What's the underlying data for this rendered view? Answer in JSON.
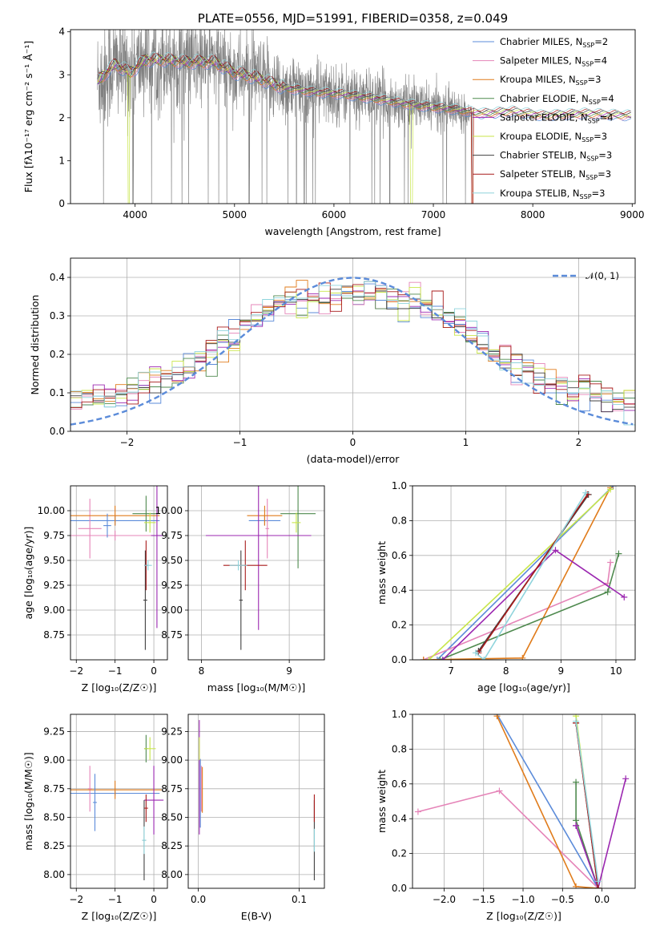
{
  "colors": {
    "Chabrier MILES": "#5b8bd9",
    "Salpeter MILES": "#e584b8",
    "Kroupa MILES": "#e07b1a",
    "Chabrier ELODIE": "#4f8a4f",
    "Salpeter ELODIE": "#9b27b0",
    "Kroupa ELODIE": "#c8e64a",
    "Chabrier STELIB": "#404040",
    "Salpeter STELIB": "#a81b1b",
    "Kroupa STELIB": "#8fd4dc",
    "data": "#808080",
    "normal": "#5b8bd9"
  },
  "chart_data": [
    {
      "id": "spectrum",
      "type": "line",
      "title": "PLATE=0556, MJD=51991, FIBERID=0358, z=0.049",
      "xlabel": "wavelength [Angstrom, rest frame]",
      "ylabel": "Flux [fλ10⁻¹⁷ erg cm⁻² s⁻¹ Å⁻¹]",
      "xlim": [
        3350,
        9030
      ],
      "ylim": [
        0,
        4.05
      ],
      "xticks": [
        4000,
        5000,
        6000,
        7000,
        8000,
        9000
      ],
      "yticks": [
        0,
        1,
        2,
        3,
        4
      ],
      "grid": false,
      "legend_position": "upper-right",
      "legend": [
        {
          "model": "Chabrier MILES",
          "label": "Chabrier MILES, N",
          "nssp": "2"
        },
        {
          "model": "Salpeter MILES",
          "label": "Salpeter MILES, N",
          "nssp": "4"
        },
        {
          "model": "Kroupa MILES",
          "label": "Kroupa MILES, N",
          "nssp": "3"
        },
        {
          "model": "Chabrier ELODIE",
          "label": "Chabrier ELODIE, N",
          "nssp": "4"
        },
        {
          "model": "Salpeter ELODIE",
          "label": "Salpeter ELODIE, N",
          "nssp": "4"
        },
        {
          "model": "Kroupa ELODIE",
          "label": "Kroupa ELODIE, N",
          "nssp": "3"
        },
        {
          "model": "Chabrier STELIB",
          "label": "Chabrier STELIB, N",
          "nssp": "3"
        },
        {
          "model": "Salpeter STELIB",
          "label": "Salpeter STELIB, N",
          "nssp": "3"
        },
        {
          "model": "Kroupa STELIB",
          "label": "Kroupa STELIB, N",
          "nssp": "3"
        }
      ],
      "legend_subscript": "SSP",
      "continuum_nodes": [
        [
          3620,
          2.85
        ],
        [
          3800,
          3.25
        ],
        [
          3950,
          3.05
        ],
        [
          4100,
          3.35
        ],
        [
          4300,
          3.35
        ],
        [
          4500,
          3.3
        ],
        [
          4800,
          3.3
        ],
        [
          5000,
          3.05
        ],
        [
          5200,
          2.95
        ],
        [
          5500,
          2.7
        ],
        [
          5800,
          2.6
        ],
        [
          6100,
          2.55
        ],
        [
          6400,
          2.45
        ],
        [
          6800,
          2.3
        ],
        [
          7200,
          2.2
        ],
        [
          7500,
          2.1
        ],
        [
          7800,
          2.15
        ],
        [
          8100,
          2.05
        ],
        [
          8500,
          2.1
        ],
        [
          8990,
          2.05
        ]
      ],
      "data_noise_amplitude": [
        [
          3620,
          1.2
        ],
        [
          4500,
          1.0
        ],
        [
          5500,
          0.75
        ],
        [
          6500,
          0.55
        ],
        [
          7300,
          0.4
        ],
        [
          7400,
          0.0
        ],
        [
          8990,
          0.0
        ]
      ],
      "data_range": [
        3620,
        7400
      ]
    },
    {
      "id": "residuals",
      "type": "histogram",
      "xlabel": "(data-model)/error",
      "ylabel": "Normed distribution",
      "xlim": [
        -2.5,
        2.5
      ],
      "ylim": [
        0,
        0.45
      ],
      "xticks": [
        -2,
        -1,
        0,
        1,
        2
      ],
      "yticks": [
        0.0,
        0.1,
        0.2,
        0.3,
        0.4
      ],
      "grid": true,
      "bin_width": 0.1,
      "legend_position": "upper-right",
      "reference": {
        "label": "𝒩(0, 1)",
        "mean": 0,
        "sigma": 1,
        "style": "dashed"
      }
    },
    {
      "id": "age_vs_Z",
      "type": "errorbar",
      "xlabel": "Z [log₁₀(Z/Z☉)]",
      "ylabel": "age  [log₁₀(age/yr)]",
      "xlim": [
        -2.15,
        0.35
      ],
      "ylim": [
        8.5,
        10.25
      ],
      "xticks": [
        -2,
        -1,
        0
      ],
      "yticks": [
        8.75,
        9.0,
        9.25,
        9.5,
        9.75,
        10.0
      ],
      "grid": true,
      "points": [
        {
          "model": "Chabrier MILES",
          "x": -1.0,
          "y": 9.9,
          "xerr": 1.15,
          "yerr": 0.05
        },
        {
          "model": "Salpeter MILES",
          "x": -1.65,
          "y": 9.82,
          "xerr": 0.3,
          "yerr": 0.3
        },
        {
          "model": "Kroupa MILES",
          "x": -1.0,
          "y": 9.95,
          "xerr": 1.15,
          "yerr": 0.1
        },
        {
          "model": "Salpeter MILES",
          "x": -1.0,
          "y": 9.75,
          "xerr": 1.2,
          "yerr": 0.05
        },
        {
          "model": "Chabrier ELODIE",
          "x": -0.2,
          "y": 9.97,
          "xerr": 0.35,
          "yerr": 0.18
        },
        {
          "model": "Salpeter ELODIE",
          "x": 0.08,
          "y": 9.75,
          "xerr": 0.15,
          "yerr": 0.93
        },
        {
          "model": "Kroupa ELODIE",
          "x": -0.1,
          "y": 9.88,
          "xerr": 0.15,
          "yerr": 0.1
        },
        {
          "model": "Chabrier STELIB",
          "x": -0.22,
          "y": 9.1,
          "xerr": 0.05,
          "yerr": 0.5
        },
        {
          "model": "Salpeter STELIB",
          "x": -0.2,
          "y": 9.45,
          "xerr": 0.05,
          "yerr": 0.25
        },
        {
          "model": "Kroupa STELIB",
          "x": -0.15,
          "y": 9.45,
          "xerr": 0.1,
          "yerr": 0.05
        },
        {
          "model": "Chabrier MILES",
          "x": -1.2,
          "y": 9.85,
          "xerr": 0.1,
          "yerr": 0.12
        }
      ]
    },
    {
      "id": "age_vs_mass",
      "type": "errorbar",
      "xlabel": "mass [log₁₀(M/M☉)]",
      "ylabel": "",
      "xlim": [
        7.85,
        9.4
      ],
      "ylim": [
        8.5,
        10.25
      ],
      "xticks": [
        8,
        9
      ],
      "yticks": [
        8.75,
        9.0,
        9.25,
        9.5,
        9.75,
        10.0
      ],
      "grid": true,
      "points": [
        {
          "model": "Chabrier MILES",
          "x": 8.72,
          "y": 9.9,
          "xerr": 0.18,
          "yerr": 0.05
        },
        {
          "model": "Salpeter MILES",
          "x": 8.75,
          "y": 9.82,
          "xerr": 0.02,
          "yerr": 0.3
        },
        {
          "model": "Kroupa MILES",
          "x": 8.72,
          "y": 9.95,
          "xerr": 0.2,
          "yerr": 0.1
        },
        {
          "model": "Chabrier ELODIE",
          "x": 9.1,
          "y": 9.97,
          "xerr": 0.2,
          "yerr": 0.55
        },
        {
          "model": "Salpeter ELODIE",
          "x": 8.65,
          "y": 9.75,
          "xerr": 0.6,
          "yerr": 0.95
        },
        {
          "model": "Kroupa ELODIE",
          "x": 9.08,
          "y": 9.88,
          "xerr": 0.05,
          "yerr": 0.1
        },
        {
          "model": "Chabrier STELIB",
          "x": 8.45,
          "y": 9.1,
          "xerr": 0.02,
          "yerr": 0.5
        },
        {
          "model": "Salpeter STELIB",
          "x": 8.5,
          "y": 9.45,
          "xerr": 0.25,
          "yerr": 0.25
        },
        {
          "model": "Kroupa STELIB",
          "x": 8.42,
          "y": 9.45,
          "xerr": 0.1,
          "yerr": 0.05
        }
      ]
    },
    {
      "id": "cumweight_age",
      "type": "line",
      "xlabel": "age  [log₁₀(age/yr)]",
      "ylabel": "mass weight",
      "xlim": [
        6.3,
        10.35
      ],
      "ylim": [
        0,
        1.0
      ],
      "xticks": [
        7,
        8,
        9,
        10
      ],
      "yticks": [
        0.0,
        0.2,
        0.4,
        0.6,
        0.8,
        1.0
      ],
      "grid": true,
      "series": [
        {
          "model": "Chabrier MILES",
          "x": [
            6.75,
            9.95
          ],
          "y": [
            0.0,
            1.0
          ]
        },
        {
          "model": "Salpeter MILES",
          "x": [
            6.5,
            9.85,
            9.9
          ],
          "y": [
            0.0,
            0.44,
            0.56
          ]
        },
        {
          "model": "Kroupa MILES",
          "x": [
            6.5,
            8.3,
            9.9
          ],
          "y": [
            0.0,
            0.01,
            0.99
          ]
        },
        {
          "model": "Chabrier ELODIE",
          "x": [
            6.8,
            9.85,
            10.05
          ],
          "y": [
            0.0,
            0.39,
            0.61
          ]
        },
        {
          "model": "Salpeter ELODIE",
          "x": [
            6.85,
            8.9,
            10.15
          ],
          "y": [
            0.0,
            0.63,
            0.36
          ]
        },
        {
          "model": "Kroupa ELODIE",
          "x": [
            6.6,
            9.9
          ],
          "y": [
            0.0,
            0.98
          ]
        },
        {
          "model": "Chabrier STELIB",
          "x": [
            7.5,
            9.5
          ],
          "y": [
            0.05,
            0.95
          ]
        },
        {
          "model": "Salpeter STELIB",
          "x": [
            7.5,
            9.48
          ],
          "y": [
            0.04,
            0.95
          ]
        },
        {
          "model": "Kroupa STELIB",
          "x": [
            7.45,
            7.6,
            9.45
          ],
          "y": [
            0.04,
            0.0,
            0.96
          ]
        }
      ]
    },
    {
      "id": "mass_vs_Z",
      "type": "errorbar",
      "xlabel": "Z [log₁₀(Z/Z☉)]",
      "ylabel": "mass [log₁₀(M/M☉)]",
      "xlim": [
        -2.15,
        0.35
      ],
      "ylim": [
        7.88,
        9.4
      ],
      "xticks": [
        -2,
        -1,
        0
      ],
      "yticks": [
        8.0,
        8.25,
        8.5,
        8.75,
        9.0,
        9.25
      ],
      "grid": true,
      "points": [
        {
          "model": "Chabrier MILES",
          "x": -1.0,
          "y": 8.71,
          "xerr": 1.15,
          "yerr": 0.02
        },
        {
          "model": "Salpeter MILES",
          "x": -1.65,
          "y": 8.75,
          "xerr": 0.05,
          "yerr": 0.2
        },
        {
          "model": "Kroupa MILES",
          "x": -1.0,
          "y": 8.74,
          "xerr": 1.2,
          "yerr": 0.08
        },
        {
          "model": "Chabrier MILES",
          "x": -1.52,
          "y": 8.63,
          "xerr": 0.05,
          "yerr": 0.25
        },
        {
          "model": "Chabrier ELODIE",
          "x": -0.2,
          "y": 9.1,
          "xerr": 0.05,
          "yerr": 0.12
        },
        {
          "model": "Salpeter ELODIE",
          "x": 0.0,
          "y": 8.65,
          "xerr": 0.25,
          "yerr": 0.3
        },
        {
          "model": "Kroupa ELODIE",
          "x": -0.1,
          "y": 9.1,
          "xerr": 0.15,
          "yerr": 0.1
        },
        {
          "model": "Chabrier STELIB",
          "x": -0.25,
          "y": 8.3,
          "xerr": 0.05,
          "yerr": 0.35
        },
        {
          "model": "Salpeter STELIB",
          "x": -0.2,
          "y": 8.58,
          "xerr": 0.05,
          "yerr": 0.12
        },
        {
          "model": "Kroupa STELIB",
          "x": -0.25,
          "y": 8.3,
          "xerr": 0.05,
          "yerr": 0.12
        }
      ]
    },
    {
      "id": "mass_vs_EBV",
      "type": "errorbar",
      "xlabel": "E(B-V)",
      "ylabel": "",
      "xlim": [
        -0.01,
        0.125
      ],
      "ylim": [
        7.88,
        9.4
      ],
      "xticks": [
        0.0,
        0.1
      ],
      "yticks": [
        8.0,
        8.25,
        8.5,
        8.75,
        9.0,
        9.25
      ],
      "grid": true,
      "points": [
        {
          "model": "Chabrier MILES",
          "x": 0.002,
          "y": 8.71,
          "xerr": 0,
          "yerr": 0.3
        },
        {
          "model": "Salpeter MILES",
          "x": 0.003,
          "y": 8.75,
          "xerr": 0,
          "yerr": 0.2
        },
        {
          "model": "Kroupa MILES",
          "x": 0.004,
          "y": 8.74,
          "xerr": 0,
          "yerr": 0.2
        },
        {
          "model": "Salpeter ELODIE",
          "x": 0.001,
          "y": 8.85,
          "xerr": 0,
          "yerr": 0.5
        },
        {
          "model": "Kroupa ELODIE",
          "x": 0.001,
          "y": 9.1,
          "xerr": 0,
          "yerr": 0.1
        },
        {
          "model": "Chabrier STELIB",
          "x": 0.115,
          "y": 8.3,
          "xerr": 0,
          "yerr": 0.35
        },
        {
          "model": "Salpeter STELIB",
          "x": 0.115,
          "y": 8.58,
          "xerr": 0,
          "yerr": 0.12
        },
        {
          "model": "Kroupa STELIB",
          "x": 0.115,
          "y": 8.3,
          "xerr": 0,
          "yerr": 0.1
        }
      ]
    },
    {
      "id": "cumweight_Z",
      "type": "line",
      "xlabel": "Z [log₁₀(Z/Z☉)]",
      "ylabel": "mass weight",
      "xlim": [
        -2.4,
        0.42
      ],
      "ylim": [
        0,
        1.0
      ],
      "xticks": [
        -2.0,
        -1.5,
        -1.0,
        -0.5,
        0.0
      ],
      "yticks": [
        0.0,
        0.2,
        0.4,
        0.6,
        0.8,
        1.0
      ],
      "grid": true,
      "series": [
        {
          "model": "Chabrier MILES",
          "x": [
            -1.33,
            -0.05
          ],
          "y": [
            1.0,
            0.0
          ]
        },
        {
          "model": "Salpeter MILES",
          "x": [
            -2.33,
            -1.3,
            -0.05
          ],
          "y": [
            0.44,
            0.56,
            0.0
          ]
        },
        {
          "model": "Kroupa MILES",
          "x": [
            -1.33,
            -0.33,
            -0.05
          ],
          "y": [
            0.99,
            0.01,
            0.0
          ]
        },
        {
          "model": "Chabrier ELODIE",
          "x": [
            -0.33,
            -0.33,
            -0.05
          ],
          "y": [
            0.61,
            0.39,
            0.0
          ]
        },
        {
          "model": "Salpeter ELODIE",
          "x": [
            0.3,
            -0.05,
            -0.33,
            -0.33
          ],
          "y": [
            0.63,
            0.0,
            0.36,
            0.36
          ]
        },
        {
          "model": "Kroupa ELODIE",
          "x": [
            -0.33,
            -0.05
          ],
          "y": [
            0.99,
            0.0
          ]
        },
        {
          "model": "Chabrier STELIB",
          "x": [
            -0.33,
            -0.05
          ],
          "y": [
            0.95,
            0.0
          ]
        },
        {
          "model": "Salpeter STELIB",
          "x": [
            -0.33,
            -0.05
          ],
          "y": [
            0.95,
            0.0
          ]
        },
        {
          "model": "Kroupa STELIB",
          "x": [
            -0.33,
            -0.05
          ],
          "y": [
            0.96,
            0.04
          ]
        }
      ]
    }
  ]
}
